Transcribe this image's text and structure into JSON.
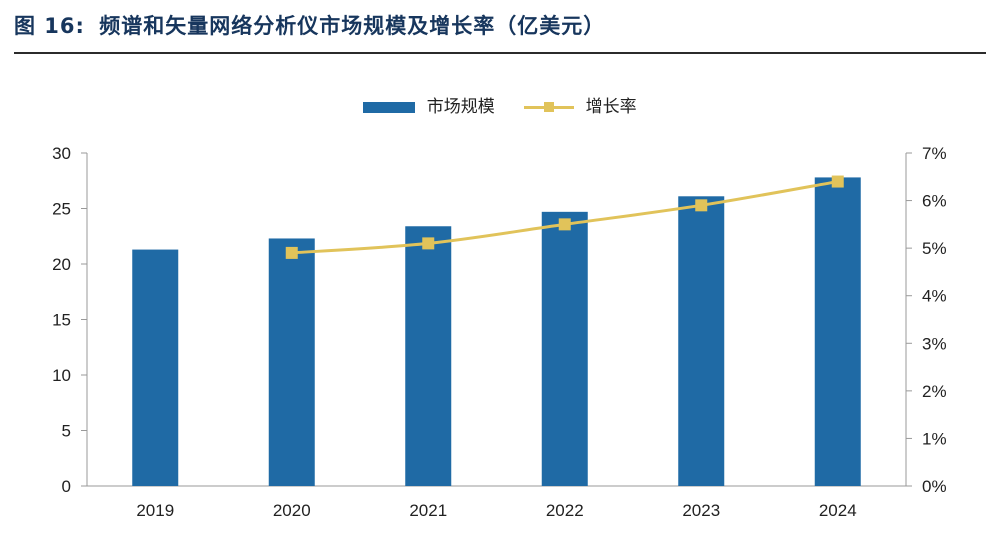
{
  "figure": {
    "label": "图 16:",
    "title": "频谱和矢量网络分析仪市场规模及增长率（亿美元）"
  },
  "chart_data": {
    "type": "bar",
    "categories": [
      "2019",
      "2020",
      "2021",
      "2022",
      "2023",
      "2024"
    ],
    "series": [
      {
        "name": "市场规模",
        "type": "bar",
        "axis": "left",
        "values": [
          21.3,
          22.3,
          23.4,
          24.7,
          26.1,
          27.8
        ],
        "color": "#1f6aa5"
      },
      {
        "name": "增长率",
        "type": "line",
        "axis": "right",
        "marker": "square",
        "values": [
          null,
          4.9,
          5.1,
          5.5,
          5.9,
          6.4
        ],
        "color": "#e1c35a"
      }
    ],
    "ylim": [
      0,
      30
    ],
    "yticks": [
      "0",
      "5",
      "10",
      "15",
      "20",
      "25",
      "30"
    ],
    "y2lim": [
      0,
      7
    ],
    "y2ticks": [
      "0%",
      "1%",
      "2%",
      "3%",
      "4%",
      "5%",
      "6%",
      "7%"
    ],
    "legend_position": "top-center",
    "grid": false
  }
}
